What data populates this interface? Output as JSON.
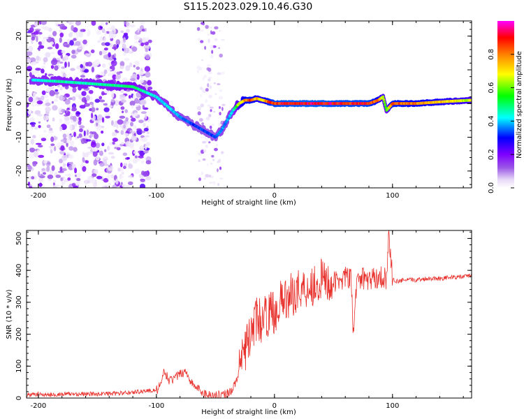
{
  "figure": {
    "title": "S115.2023.029.10.46.G30"
  },
  "chart_data": [
    {
      "type": "heatmap",
      "title": "",
      "xlabel": "Height of straight line (km)",
      "ylabel": "Frequency (Hz)",
      "xlim": [
        -210,
        167
      ],
      "ylim": [
        -25,
        24.5
      ],
      "xticks": [
        -200,
        -100,
        0,
        100
      ],
      "yticks": [
        -20,
        -10,
        0,
        10,
        20
      ],
      "colorbar": {
        "label": "Normalized spectral amplitude",
        "range": [
          0,
          1
        ],
        "ticks": [
          0.0,
          0.2,
          0.4,
          0.6,
          0.8
        ],
        "colormap": [
          "#ffffff",
          "#e6d8f7",
          "#c9a6ef",
          "#9b59e6",
          "#7f00ff",
          "#0000ff",
          "#00ffff",
          "#00ff00",
          "#ffff00",
          "#ff8000",
          "#ff0000",
          "#ff00ff"
        ]
      },
      "ridge": {
        "x": [
          -205,
          -180,
          -160,
          -140,
          -120,
          -110,
          -100,
          -90,
          -80,
          -70,
          -60,
          -50,
          -45,
          -40,
          -35,
          -30,
          -25,
          -20,
          -15,
          -10,
          -5,
          0,
          20,
          40,
          60,
          80,
          88,
          92,
          95,
          100,
          120,
          140,
          167
        ],
        "y": [
          7,
          6.5,
          6,
          5.5,
          5,
          3.5,
          2,
          -1,
          -4,
          -6,
          -8,
          -10,
          -8,
          -5,
          -2,
          0,
          1,
          1,
          1.5,
          1,
          0.5,
          0,
          0,
          0,
          0,
          0,
          1,
          2,
          -2,
          0,
          0,
          0.5,
          1
        ],
        "amplitude": [
          0.45,
          0.5,
          0.5,
          0.5,
          0.55,
          0.5,
          0.45,
          0.45,
          0.4,
          0.35,
          0.35,
          0.35,
          0.4,
          0.4,
          0.45,
          0.7,
          0.85,
          0.9,
          0.8,
          0.75,
          0.9,
          0.95,
          0.98,
          0.98,
          0.95,
          0.95,
          0.85,
          0.7,
          0.6,
          0.9,
          0.85,
          0.8,
          0.7
        ]
      }
    },
    {
      "type": "line",
      "title": "",
      "xlabel": "Height of straight line (km)",
      "ylabel": "SNR (10 * v/v)",
      "xlim": [
        -210,
        167
      ],
      "ylim": [
        0,
        525
      ],
      "xticks": [
        -200,
        -100,
        0,
        100
      ],
      "yticks": [
        0,
        100,
        200,
        300,
        400,
        500
      ],
      "series": [
        {
          "color": "#e8312c",
          "x": [
            -210,
            -200,
            -190,
            -180,
            -170,
            -160,
            -150,
            -140,
            -130,
            -120,
            -110,
            -100,
            -96,
            -93,
            -90,
            -85,
            -80,
            -75,
            -70,
            -65,
            -60,
            -55,
            -50,
            -45,
            -40,
            -35,
            -30,
            -25,
            -20,
            -15,
            -10,
            -5,
            0,
            5,
            10,
            20,
            30,
            40,
            50,
            60,
            65,
            67,
            70,
            80,
            90,
            95,
            97,
            100,
            105,
            110,
            120,
            130,
            140,
            150,
            160,
            167
          ],
          "y": [
            10,
            12,
            10,
            12,
            13,
            12,
            13,
            14,
            15,
            18,
            22,
            25,
            40,
            90,
            55,
            60,
            75,
            85,
            45,
            30,
            15,
            10,
            8,
            10,
            15,
            30,
            80,
            150,
            200,
            250,
            240,
            265,
            270,
            300,
            310,
            340,
            350,
            370,
            360,
            380,
            370,
            190,
            380,
            370,
            380,
            375,
            520,
            370,
            365,
            370,
            370,
            375,
            375,
            378,
            380,
            385
          ]
        }
      ]
    }
  ]
}
